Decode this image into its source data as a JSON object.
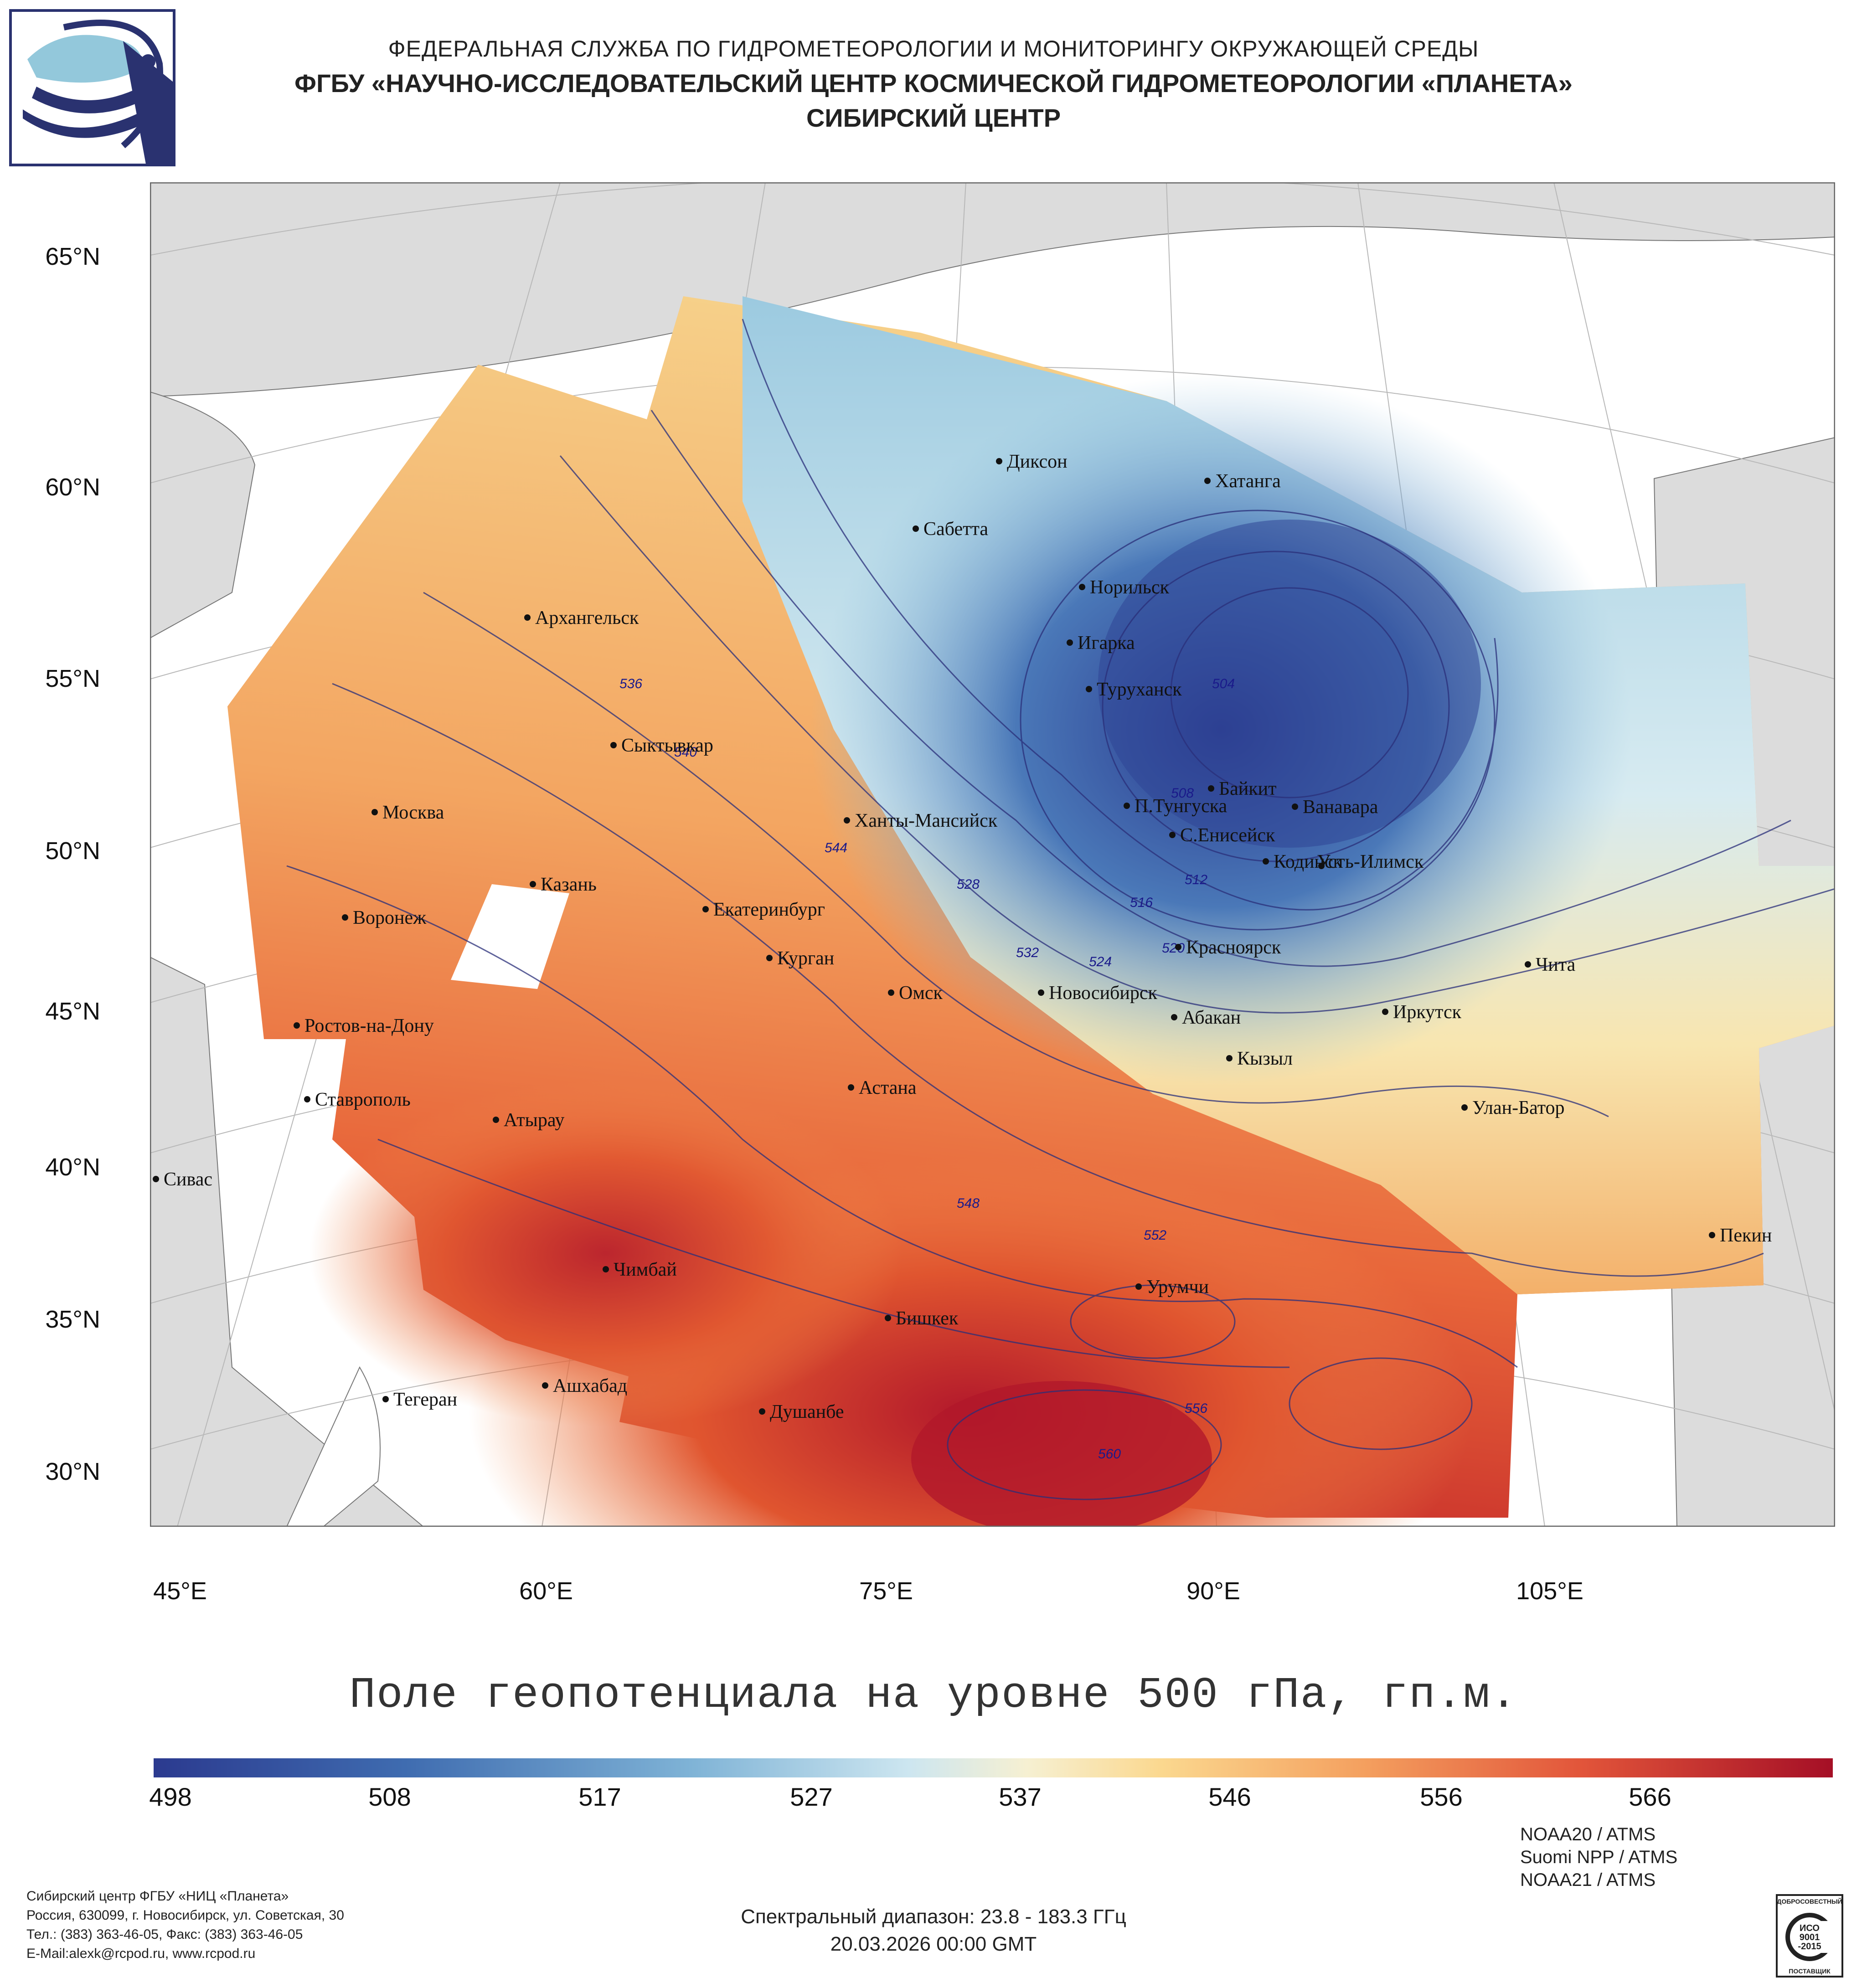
{
  "header": {
    "line1": "ФЕДЕРАЛЬНАЯ СЛУЖБА ПО ГИДРОМЕТЕОРОЛОГИИ И МОНИТОРИНГУ ОКРУЖАЮЩЕЙ СРЕДЫ",
    "line2": "ФГБУ «НАУЧНО-ИССЛЕДОВАТЕЛЬСКИЙ ЦЕНТР КОСМИЧЕСКОЙ ГИДРОМЕТЕОРОЛОГИИ «ПЛАНЕТА»",
    "line3": "СИБИРСКИЙ ЦЕНТР"
  },
  "map": {
    "title": "Поле геопотенциала на уровне 500 гПа, гп.м.",
    "lat_labels": [
      "65°N",
      "60°N",
      "55°N",
      "50°N",
      "45°N",
      "40°N",
      "35°N",
      "30°N"
    ],
    "lon_labels": [
      "45°E",
      "60°E",
      "75°E",
      "90°E",
      "105°E"
    ],
    "cities": [
      "Диксон",
      "Хатанга",
      "Сабетта",
      "Норильск",
      "Игарка",
      "Архангельск",
      "Туруханск",
      "Сыктывкар",
      "Байкит",
      "Москва",
      "П.Тунгуска",
      "Ванавара",
      "Ханты-Мансийск",
      "С.Енисейск",
      "Казань",
      "Кодинск",
      "Усть-Илимск",
      "Екатеринбург",
      "Воронеж",
      "Красноярск",
      "Курган",
      "Чита",
      "Омск",
      "Новосибирск",
      "Ростов-на-Дону",
      "Абакан",
      "Иркутск",
      "Кызыл",
      "Астана",
      "Ставрополь",
      "Улан-Батор",
      "Атырау",
      "Сивас",
      "Пекин",
      "Чимбай",
      "Урумчи",
      "Бишкек",
      "Ашхабад",
      "Тегеран",
      "Душанбе"
    ],
    "contour_labels": [
      "504",
      "508",
      "512",
      "516",
      "520",
      "524",
      "528",
      "532",
      "536",
      "540",
      "544",
      "548",
      "552",
      "556",
      "560"
    ],
    "colors": {
      "low": "#2b3a8f",
      "mid": "#f2efd0",
      "high": "#b2182b",
      "land": "#dcdcdc",
      "contour": "#2a2f7a"
    }
  },
  "colorbar": {
    "ticks": [
      "498",
      "508",
      "517",
      "527",
      "537",
      "546",
      "556",
      "566"
    ],
    "min": 498,
    "max": 575
  },
  "footer": {
    "org_line1": "Сибирский центр ФГБУ «НИЦ «Планета»",
    "org_line2": "Россия, 630099, г. Новосибирск, ул. Советская, 30",
    "org_line3": "Тел.: (383) 363-46-05, Факс: (383) 363-46-05",
    "org_line4": "E-Mail:alexk@rcpod.ru, www.rcpod.ru",
    "spectral": "Спектральный диапазон: 23.8 - 183.3 ГГц",
    "datetime": "20.03.2026 00:00 GMT",
    "sat1": "NOAA20 / ATMS",
    "sat2": "Suomi NPP / ATMS",
    "sat3": "NOAA21 / ATMS"
  },
  "iso": {
    "top": "ДОБРОСОВЕСТНЫЙ",
    "l1": "ИСО",
    "l2": "9001",
    "l3": "-2015",
    "bottom": "ПОСТАВЩИК"
  }
}
